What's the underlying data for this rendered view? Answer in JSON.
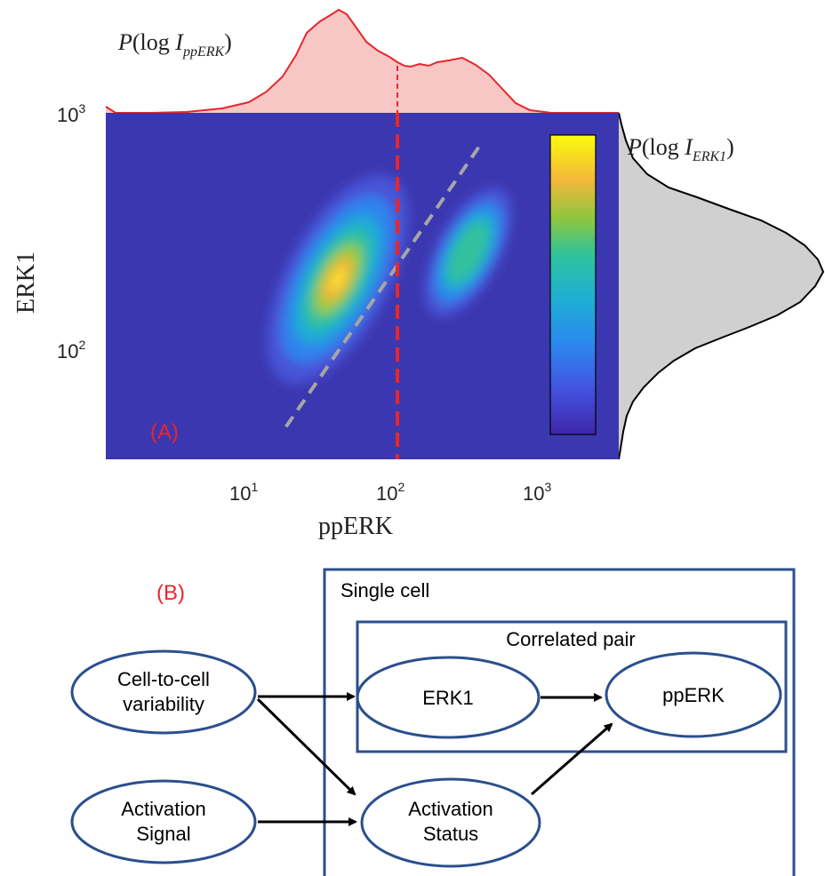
{
  "panel_a": {
    "label": "(A)",
    "top_marginal_label": {
      "P": "P",
      "open": "(log ",
      "I": "I",
      "sub": "ppERK",
      "close": ")"
    },
    "right_marginal_label": {
      "P": "P",
      "open": "(log ",
      "I": "I",
      "sub": "ERK1",
      "close": ")"
    },
    "colors": {
      "background": "#3b37b0",
      "top_marginal": "#e8262b",
      "top_fill": "#f9c6c6",
      "right_fill": "#d0d0d0",
      "threshold": "#e8262b",
      "diagonal": "#a6a6a6"
    }
  },
  "chart_data": {
    "type": "heatmap",
    "title": "",
    "xlabel": "ppERK",
    "ylabel": "ERK1",
    "x_scale": "log",
    "y_scale": "log",
    "x_ticks": [
      {
        "value": 10,
        "base": "10",
        "exp": "1"
      },
      {
        "value": 100,
        "base": "10",
        "exp": "2"
      },
      {
        "value": 1000,
        "base": "10",
        "exp": "3"
      }
    ],
    "y_ticks": [
      {
        "value": 100,
        "base": "10",
        "exp": "2"
      },
      {
        "value": 1000,
        "base": "10",
        "exp": "3"
      }
    ],
    "xlim": [
      1.2,
      3000
    ],
    "ylim": [
      42,
      1000
    ],
    "density_peaks": [
      {
        "x": 45,
        "y": 200,
        "weight": 1.0,
        "name": "inactive"
      },
      {
        "x": 350,
        "y": 260,
        "weight": 0.55,
        "name": "active"
      }
    ],
    "threshold_x": 115,
    "diagonal_line": {
      "x": [
        20,
        440
      ],
      "y": [
        48,
        760
      ]
    },
    "colorbar": {
      "colormap": "parula",
      "orientation": "vertical"
    }
  },
  "panel_b": {
    "label": "(B)",
    "outer_box_title": "Single cell",
    "inner_box_title": "Correlated pair",
    "nodes": {
      "variability": [
        "Cell-to-cell",
        "variability"
      ],
      "signal": [
        "Activation",
        "Signal"
      ],
      "erk1": [
        "ERK1"
      ],
      "pperk": [
        "ppERK"
      ],
      "status": [
        "Activation",
        "Status"
      ]
    },
    "colors": {
      "node_border": "#2b4f8e",
      "box_border": "#2b4f8e",
      "arrow": "#000000"
    }
  }
}
